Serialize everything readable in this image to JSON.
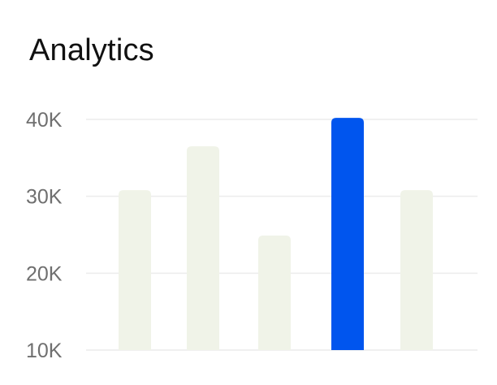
{
  "card": {
    "title": "Analytics"
  },
  "colors": {
    "bar_default": "#f0f3e8",
    "bar_highlight": "#0055ee",
    "gridline": "#ececec",
    "tick_text": "#6f6f6f"
  },
  "chart_data": {
    "type": "bar",
    "categories": [
      "",
      "",
      "",
      "",
      ""
    ],
    "values": [
      30800,
      36500,
      24900,
      40200,
      30800
    ],
    "highlight_index": 3,
    "ylim": [
      10000,
      40000
    ],
    "yticks": [
      {
        "value": 40000,
        "label": "40K"
      },
      {
        "value": 30000,
        "label": "30K"
      },
      {
        "value": 20000,
        "label": "20K"
      },
      {
        "value": 10000,
        "label": "10K"
      }
    ],
    "grid": true,
    "legend": "none"
  }
}
